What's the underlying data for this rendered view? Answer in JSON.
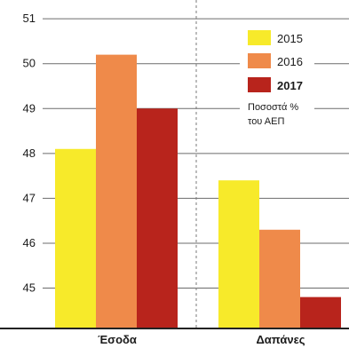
{
  "chart_data": {
    "type": "bar",
    "categories": [
      "Έσοδα",
      "Δαπάνες"
    ],
    "series": [
      {
        "name": "2015",
        "values": [
          48.1,
          47.4
        ],
        "color": "#f7ea2a"
      },
      {
        "name": "2016",
        "values": [
          50.2,
          46.3
        ],
        "color": "#ef8a4a"
      },
      {
        "name": "2017",
        "values": [
          49.0,
          44.8
        ],
        "color": "#b8241c"
      }
    ],
    "yticks": [
      45,
      46,
      47,
      48,
      49,
      50,
      51
    ],
    "ylim": [
      44.1,
      51.3
    ],
    "grid": true,
    "legend": {
      "position": "top-right",
      "unit_note_line1": "Ποσοστά %",
      "unit_note_line2": "του ΑΕΠ"
    }
  }
}
